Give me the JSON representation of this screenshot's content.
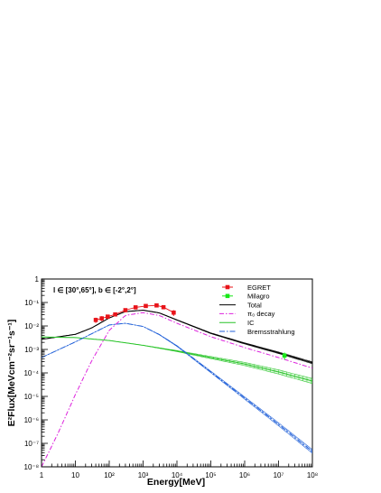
{
  "chart_data": {
    "type": "line",
    "title": "",
    "region_label": "l ∈ [30°,65°], b ∈ [-2°,2°]",
    "xlabel": "Energy[MeV]",
    "ylabel": "E²Flux[MeVcm⁻²sr⁻¹s⁻¹]",
    "xscale": "log",
    "yscale": "log",
    "xlim": [
      1,
      100000000
    ],
    "ylim": [
      1e-08,
      1
    ],
    "grid": false,
    "legend_position": "top-right",
    "x_ticks": [
      {
        "value": 1,
        "label": "1"
      },
      {
        "value": 10,
        "label": "10"
      },
      {
        "value": 100,
        "label": "10²"
      },
      {
        "value": 1000,
        "label": "10³"
      },
      {
        "value": 10000,
        "label": "10⁴"
      },
      {
        "value": 100000,
        "label": "10⁵"
      },
      {
        "value": 1000000,
        "label": "10⁶"
      },
      {
        "value": 10000000,
        "label": "10⁷"
      },
      {
        "value": 100000000,
        "label": "10⁸"
      }
    ],
    "y_ticks": [
      {
        "value": 1e-08,
        "label": "10⁻⁸"
      },
      {
        "value": 1e-07,
        "label": "10⁻⁷"
      },
      {
        "value": 1e-06,
        "label": "10⁻⁶"
      },
      {
        "value": 1e-05,
        "label": "10⁻⁵"
      },
      {
        "value": 0.0001,
        "label": "10⁻⁴"
      },
      {
        "value": 0.001,
        "label": "10⁻³"
      },
      {
        "value": 0.01,
        "label": "10⁻²"
      },
      {
        "value": 0.1,
        "label": "10⁻¹"
      },
      {
        "value": 1,
        "label": "1"
      }
    ],
    "legend": [
      {
        "label": "EGRET",
        "series": "egret"
      },
      {
        "label": "Milagro",
        "series": "milagro"
      },
      {
        "label": "Total",
        "series": "total"
      },
      {
        "label": "π₀ decay",
        "series": "pi0"
      },
      {
        "label": "IC",
        "series": "ic"
      },
      {
        "label": "Bremsstrahlung",
        "series": "brems"
      }
    ],
    "series": [
      {
        "name": "EGRET",
        "id": "egret",
        "kind": "points",
        "color": "#e8141a",
        "x": [
          40,
          60,
          90,
          150,
          300,
          600,
          1200,
          2500,
          4000,
          8000
        ],
        "y": [
          0.018,
          0.021,
          0.025,
          0.031,
          0.047,
          0.062,
          0.071,
          0.075,
          0.063,
          0.037
        ],
        "err": [
          0.0045,
          0.005,
          0.005,
          0.005,
          0.006,
          0.008,
          0.009,
          0.012,
          0.012,
          0.01
        ]
      },
      {
        "name": "Milagro",
        "id": "milagro",
        "kind": "points",
        "color": "#17e817",
        "x": [
          15000000
        ],
        "y": [
          0.00055
        ],
        "err": [
          0.00018
        ]
      },
      {
        "name": "Total",
        "id": "total",
        "kind": "line",
        "color": "#000000",
        "dash": "",
        "band": 0.1,
        "x": [
          1,
          10,
          30,
          100,
          300,
          1000,
          3000,
          10000,
          100000,
          1000000,
          10000000,
          100000000
        ],
        "y": [
          0.0027,
          0.0044,
          0.0082,
          0.022,
          0.041,
          0.047,
          0.036,
          0.018,
          0.0049,
          0.0018,
          0.00072,
          0.00027
        ]
      },
      {
        "name": "π₀ decay",
        "id": "pi0",
        "kind": "line",
        "color": "#dd22dd",
        "dash": "5 2 1.5 2",
        "band": 0,
        "x": [
          1,
          3,
          10,
          30,
          100,
          300,
          1000,
          3000,
          10000,
          100000,
          1000000,
          10000000,
          100000000
        ],
        "y": [
          1e-08,
          2.5e-07,
          1.2e-05,
          0.00032,
          0.0065,
          0.028,
          0.037,
          0.028,
          0.013,
          0.0035,
          0.0012,
          0.00045,
          0.00016
        ]
      },
      {
        "name": "IC",
        "id": "ic",
        "kind": "line",
        "color": "#28c428",
        "dash": "",
        "band": 0.28,
        "x": [
          1,
          10,
          100,
          1000,
          10000,
          100000,
          1000000,
          10000000,
          100000000
        ],
        "y": [
          0.0034,
          0.0032,
          0.0024,
          0.0015,
          0.00085,
          0.00045,
          0.00024,
          0.00011,
          4.5e-05
        ]
      },
      {
        "name": "Bremsstrahlung",
        "id": "brems",
        "kind": "line",
        "color": "#1f5fd8",
        "dash": "6 2 1.5 2",
        "band": 0.2,
        "x": [
          1,
          10,
          100,
          300,
          1000,
          3000,
          10000,
          100000,
          1000000,
          10000000,
          100000000
        ],
        "y": [
          0.00045,
          0.0021,
          0.011,
          0.013,
          0.0095,
          0.0043,
          0.0014,
          0.00011,
          8.5e-06,
          6.5e-07,
          4.5e-08
        ]
      }
    ]
  }
}
